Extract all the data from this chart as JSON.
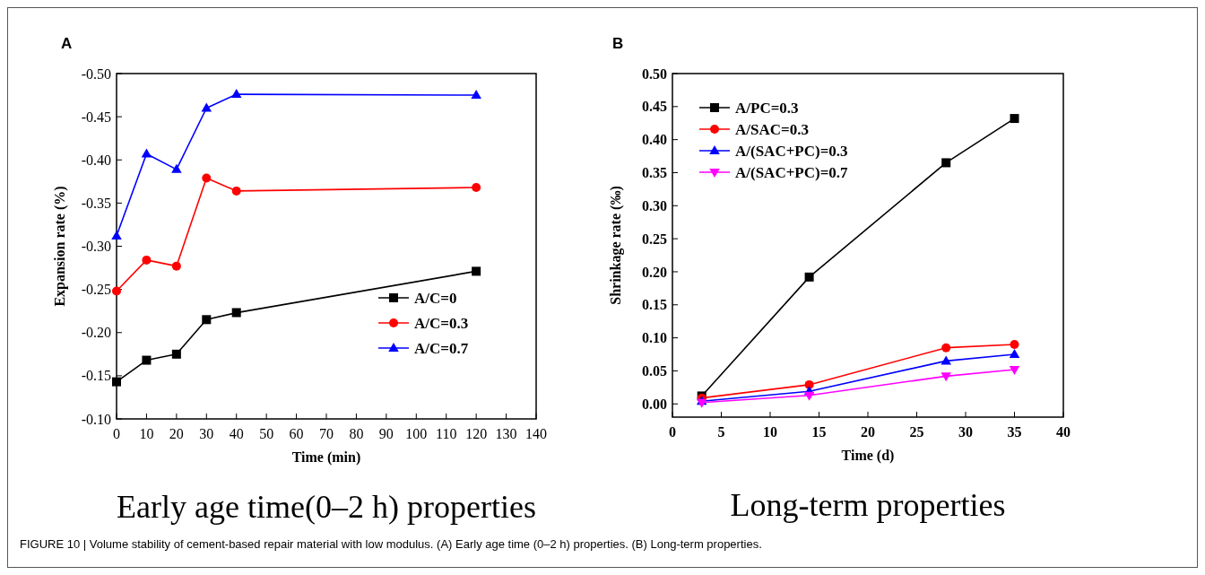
{
  "chart_data": [
    {
      "type": "line",
      "title": "A",
      "subtitle": "Early age time(0–2 h) properties",
      "xlabel": "Time (min)",
      "ylabel": "Expansion rate (%)",
      "xlim": [
        0,
        140
      ],
      "xticks": [
        0,
        10,
        20,
        30,
        40,
        50,
        60,
        70,
        80,
        90,
        100,
        110,
        120,
        130,
        140
      ],
      "ylim": [
        -0.1,
        -0.5
      ],
      "yticks": [
        {
          "value": -0.1,
          "label": "-0.10"
        },
        {
          "value": -0.15,
          "label": "-0.15"
        },
        {
          "value": -0.2,
          "label": "-0.20"
        },
        {
          "value": -0.25,
          "label": "-0.25"
        },
        {
          "value": -0.3,
          "label": "-0.30"
        },
        {
          "value": -0.35,
          "label": "-0.35"
        },
        {
          "value": -0.4,
          "label": "-0.40"
        },
        {
          "value": -0.45,
          "label": "-0.45"
        },
        {
          "value": -0.5,
          "label": "-0.50"
        }
      ],
      "grid": false,
      "legend": "bottom right",
      "x": [
        0,
        10,
        20,
        30,
        40,
        120
      ],
      "series": [
        {
          "name": "A/C=0",
          "color": "#000000",
          "marker": "square",
          "values": [
            -0.143,
            -0.168,
            -0.175,
            -0.215,
            -0.223,
            -0.271
          ]
        },
        {
          "name": "A/C=0.3",
          "color": "#ff0000",
          "marker": "circle",
          "values": [
            -0.248,
            -0.284,
            -0.277,
            -0.379,
            -0.364,
            -0.368
          ]
        },
        {
          "name": "A/C=0.7",
          "color": "#0000ff",
          "marker": "triangle",
          "values": [
            -0.312,
            -0.407,
            -0.389,
            -0.46,
            -0.476,
            -0.475
          ]
        }
      ],
      "annotations": [
        "FIGURE 10 | Volume stability of cement-based repair material with low modulus. (A) Early age time (0–2 h) properties. (B) Long-term properties."
      ]
    },
    {
      "type": "line",
      "title": "B",
      "subtitle": "Long-term properties",
      "xlabel": "Time (d)",
      "ylabel": "Shrinkage rate (‰)",
      "xlim": [
        0,
        40
      ],
      "xticks": [
        0,
        5,
        10,
        15,
        20,
        25,
        30,
        35,
        40
      ],
      "ylim": [
        -0.02,
        0.5
      ],
      "yticks": [
        {
          "value": 0,
          "label": "0.00"
        },
        {
          "value": 0.05,
          "label": "0.05"
        },
        {
          "value": 0.1,
          "label": "0.10"
        },
        {
          "value": 0.15,
          "label": "0.15"
        },
        {
          "value": 0.2,
          "label": "0.20"
        },
        {
          "value": 0.25,
          "label": "0.25"
        },
        {
          "value": 0.3,
          "label": "0.30"
        },
        {
          "value": 0.35,
          "label": "0.35"
        },
        {
          "value": 0.4,
          "label": "0.40"
        },
        {
          "value": 0.45,
          "label": "0.45"
        },
        {
          "value": 0.5,
          "label": "0.50"
        }
      ],
      "grid": false,
      "legend": "top left",
      "x": [
        3,
        14,
        28,
        35
      ],
      "series": [
        {
          "name": "A/PC=0.3",
          "color": "#000000",
          "marker": "square",
          "values": [
            0.012,
            0.192,
            0.365,
            0.432
          ]
        },
        {
          "name": "A/SAC=0.3",
          "color": "#ff0000",
          "marker": "circle",
          "values": [
            0.009,
            0.029,
            0.085,
            0.09
          ]
        },
        {
          "name": "A/(SAC+PC)=0.3",
          "color": "#0000ff",
          "marker": "triangle",
          "values": [
            0.004,
            0.019,
            0.065,
            0.075
          ]
        },
        {
          "name": "A/(SAC+PC)=0.7",
          "color": "#ff00ff",
          "marker": "triangle-down",
          "values": [
            0.002,
            0.013,
            0.042,
            0.052
          ]
        }
      ]
    }
  ]
}
